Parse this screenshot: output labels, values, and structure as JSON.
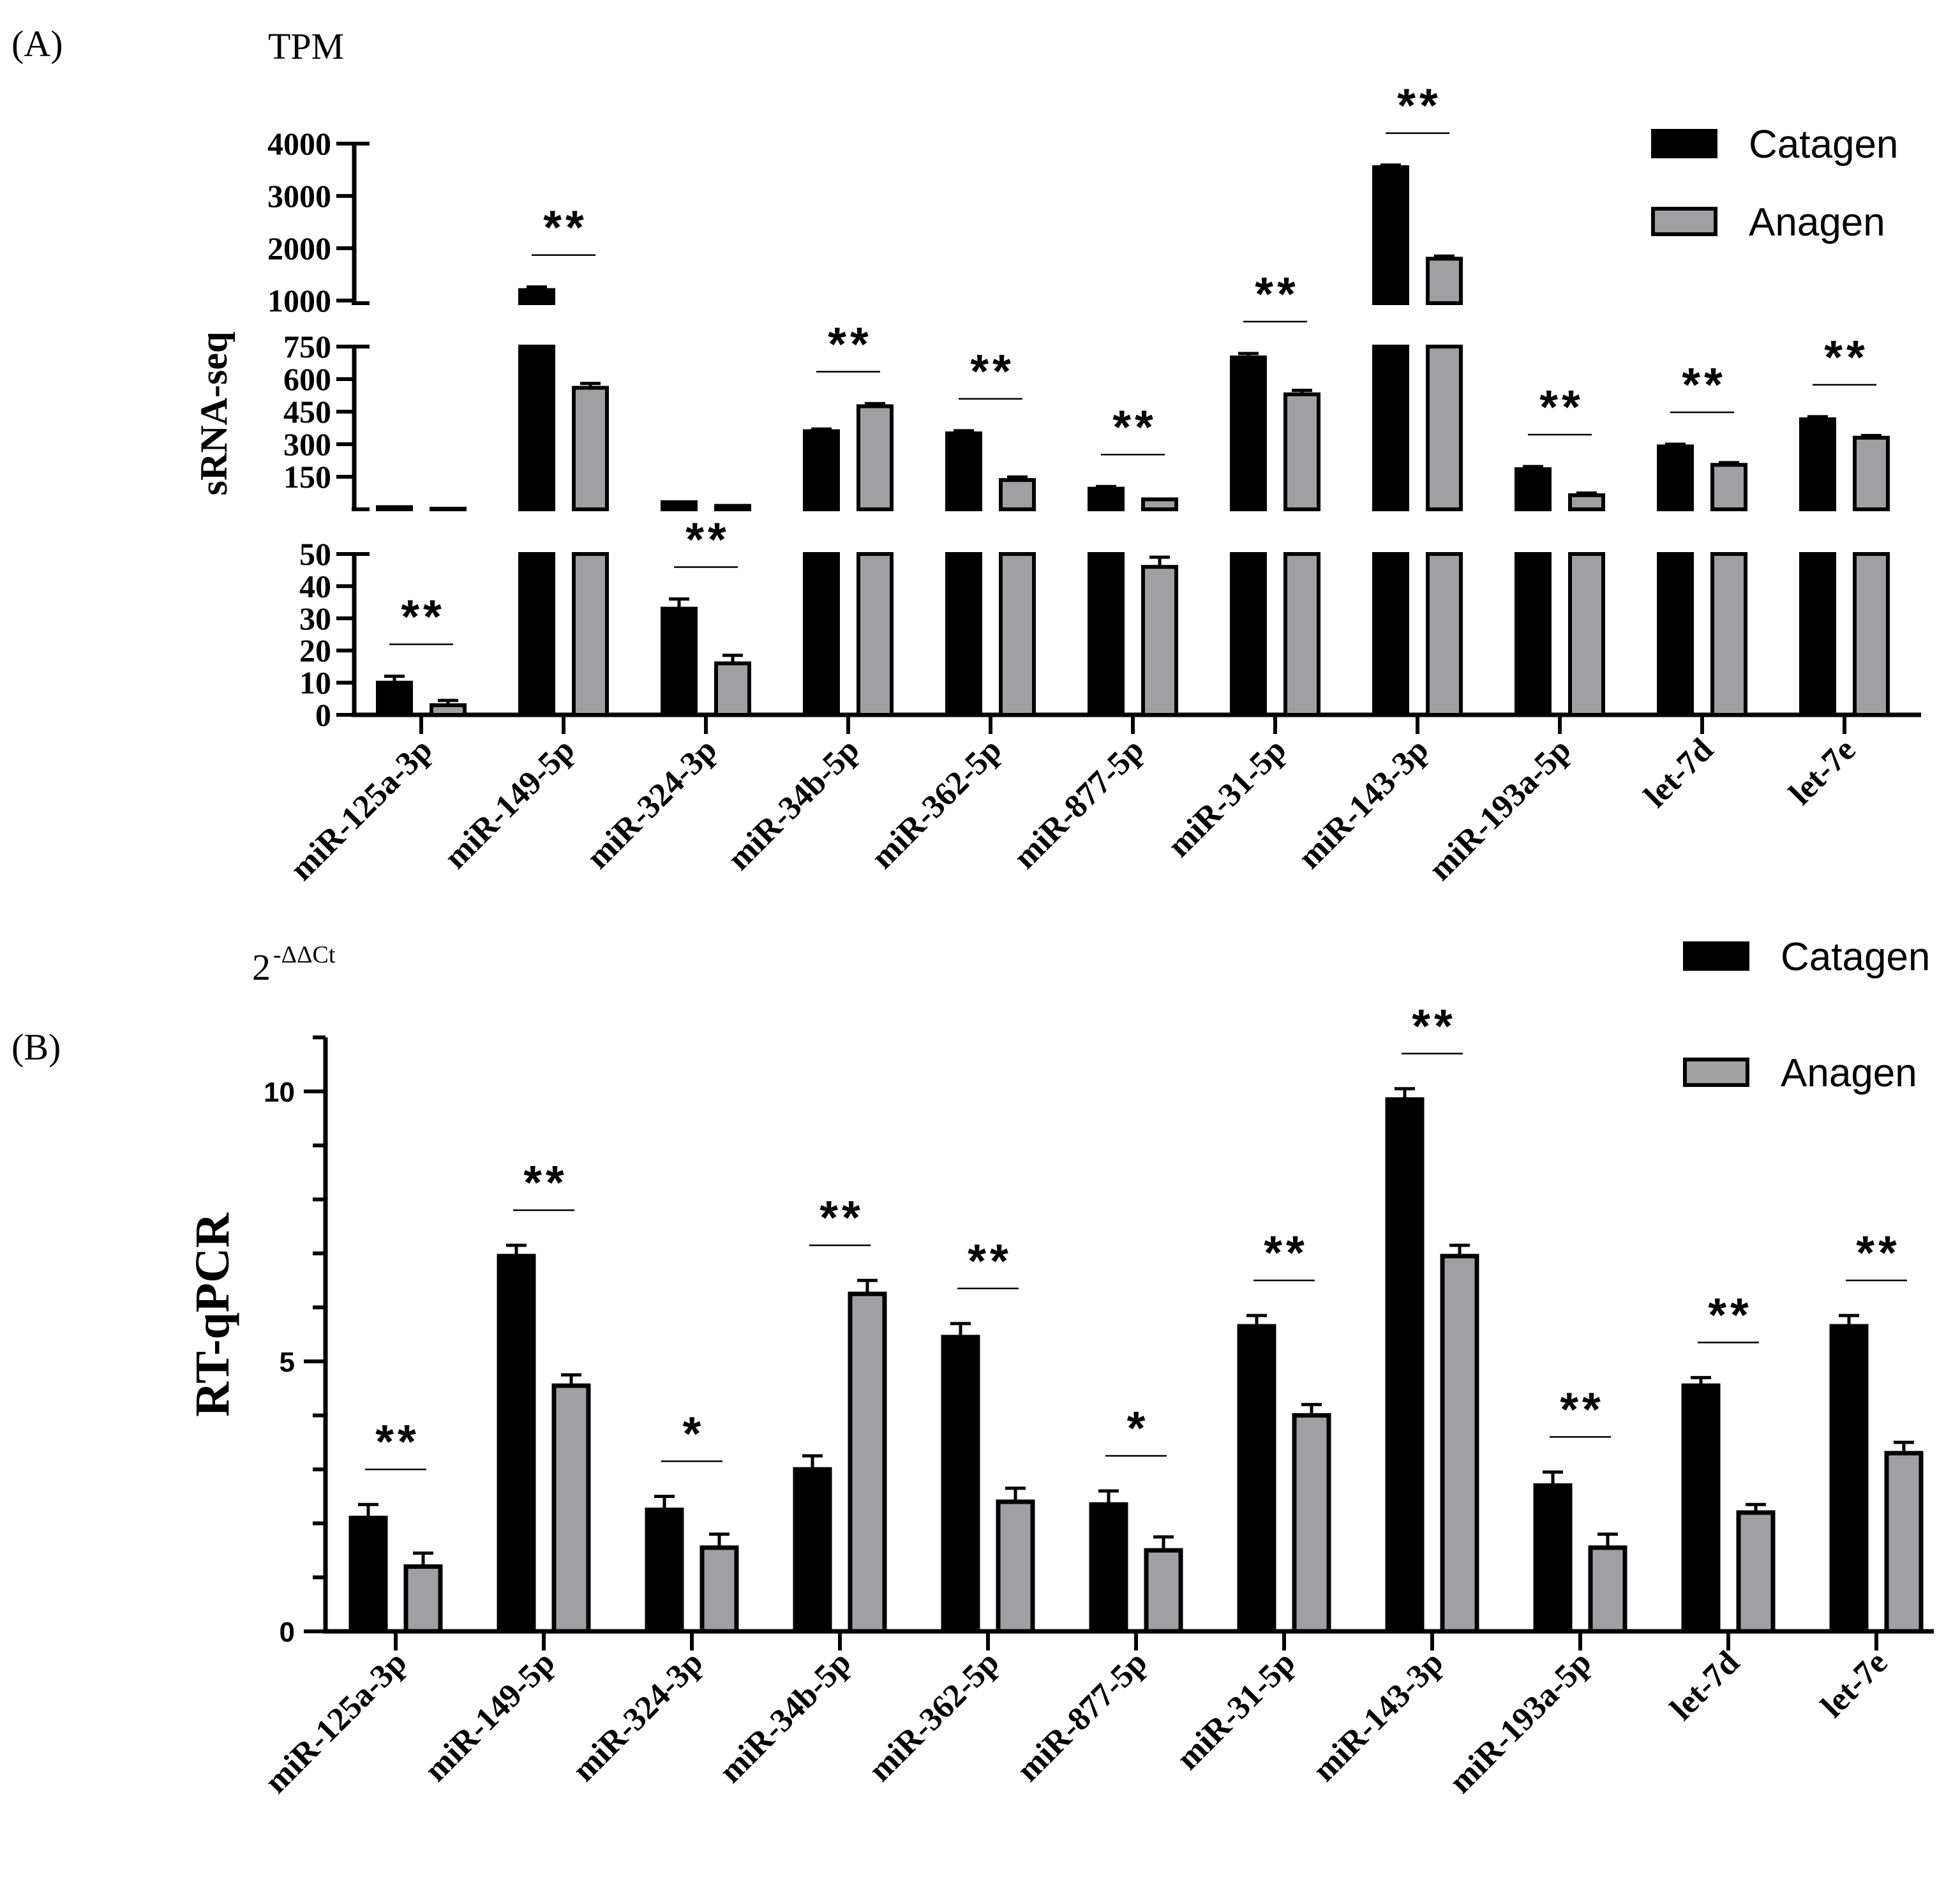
{
  "figure": {
    "panel_a_label": "(A)",
    "panel_b_label": "(B)"
  },
  "chart_data": [
    {
      "id": "A",
      "type": "bar",
      "unit_label": "TPM",
      "ylabel": "sRNA-seq",
      "xlabel": "",
      "categories": [
        "miR-125a-3p",
        "miR-149-5p",
        "miR-324-3p",
        "miR-34b-5p",
        "miR-362-5p",
        "miR-877-5p",
        "miR-31-5p",
        "miR-143-3p",
        "miR-193a-5p",
        "let-7d",
        "let-7e"
      ],
      "series": [
        {
          "name": "Catagen",
          "color": "#000000",
          "values": [
            10,
            1200,
            33,
            360,
            350,
            95,
            700,
            3550,
            185,
            290,
            415
          ],
          "errors": [
            2,
            60,
            3,
            10,
            12,
            10,
            18,
            40,
            12,
            10,
            12
          ]
        },
        {
          "name": "Anagen",
          "color": "#a0a0a3",
          "values": [
            3,
            560,
            16,
            475,
            135,
            46,
            530,
            1800,
            65,
            205,
            330
          ],
          "errors": [
            1.5,
            20,
            2.5,
            12,
            14,
            3,
            18,
            50,
            10,
            10,
            10
          ]
        }
      ],
      "significance": [
        "**",
        "**",
        "**",
        "**",
        "**",
        "**",
        "**",
        "**",
        "**",
        "**",
        "**"
      ],
      "y_segments": [
        {
          "range": [
            0,
            50
          ],
          "ticks": [
            "0",
            "10",
            "20",
            "30",
            "40",
            "50"
          ]
        },
        {
          "range": [
            0,
            750
          ],
          "ticks": [
            "150",
            "300",
            "450",
            "600",
            "750"
          ]
        },
        {
          "range": [
            950,
            4000
          ],
          "ticks": [
            "1000",
            "2000",
            "3000",
            "4000"
          ]
        }
      ],
      "legend": {
        "position": "top-right",
        "entries": [
          "Catagen",
          "Anagen"
        ]
      }
    },
    {
      "id": "B",
      "type": "bar",
      "unit_label": "2",
      "unit_superscript": "-ΔΔCt",
      "ylabel": "RT-qPCR",
      "xlabel": "",
      "ylim": [
        0,
        11
      ],
      "yticks": [
        "0",
        "5",
        "10"
      ],
      "categories": [
        "miR-125a-3p",
        "miR-149-5p",
        "miR-324-3p",
        "miR-34b-5p",
        "miR-362-5p",
        "miR-877-5p",
        "miR-31-5p",
        "miR-143-3p",
        "miR-193a-5p",
        "let-7d",
        "let-7e"
      ],
      "series": [
        {
          "name": "Catagen",
          "color": "#000000",
          "values": [
            2.1,
            6.95,
            2.25,
            3.0,
            5.45,
            2.35,
            5.65,
            9.85,
            2.7,
            4.55,
            5.65
          ],
          "errors": [
            0.25,
            0.2,
            0.25,
            0.25,
            0.25,
            0.25,
            0.2,
            0.2,
            0.25,
            0.15,
            0.2
          ]
        },
        {
          "name": "Anagen",
          "color": "#a0a0a3",
          "values": [
            1.2,
            4.55,
            1.55,
            6.25,
            2.4,
            1.5,
            4.0,
            6.95,
            1.55,
            2.2,
            3.3
          ],
          "errors": [
            0.25,
            0.2,
            0.25,
            0.25,
            0.25,
            0.25,
            0.2,
            0.2,
            0.25,
            0.15,
            0.2
          ]
        }
      ],
      "significance": [
        "**",
        "**",
        "*",
        "**",
        "**",
        "*",
        "**",
        "**",
        "**",
        "**",
        "**"
      ],
      "legend": {
        "position": "top-right",
        "entries": [
          "Catagen",
          "Anagen"
        ]
      }
    }
  ]
}
